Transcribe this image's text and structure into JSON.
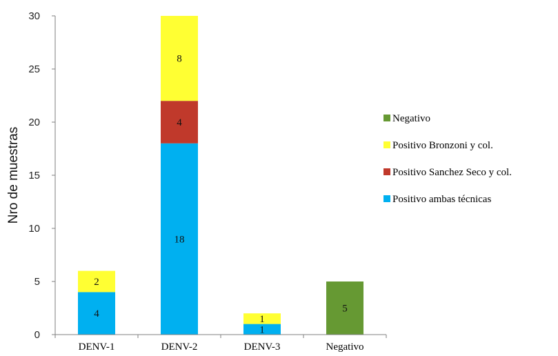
{
  "chart_data": {
    "type": "bar",
    "stacked": true,
    "categories": [
      "DENV-1",
      "DENV-2",
      "DENV-3",
      "Negativo"
    ],
    "ylabel": "Nro de muestras",
    "xlabel": "",
    "title": "",
    "ylim": [
      0,
      30
    ],
    "yticks": [
      0,
      5,
      10,
      15,
      20,
      25,
      30
    ],
    "grid": false,
    "legend_position": "right",
    "series": [
      {
        "name": "Positivo ambas técnicas",
        "color": "#00b0f0",
        "values": [
          4,
          18,
          1,
          0
        ]
      },
      {
        "name": "Positivo Sanchez Seco y col.",
        "color": "#c0392b",
        "values": [
          0,
          4,
          0,
          0
        ]
      },
      {
        "name": "Positivo Bronzoni y col.",
        "color": "#ffff33",
        "values": [
          2,
          8,
          1,
          0
        ]
      },
      {
        "name": "Negativo",
        "color": "#669933",
        "values": [
          0,
          0,
          0,
          5
        ]
      }
    ],
    "legend_order": [
      "Negativo",
      "Positivo Bronzoni y col.",
      "Positivo Sanchez Seco y col.",
      "Positivo ambas técnicas"
    ]
  }
}
